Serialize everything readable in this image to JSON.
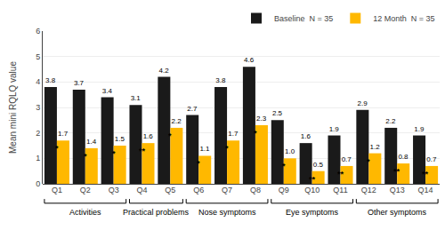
{
  "chart_data": {
    "type": "bar",
    "categories": [
      "Q1",
      "Q2",
      "Q3",
      "Q4",
      "Q5",
      "Q6",
      "Q7",
      "Q8",
      "Q9",
      "Q10",
      "Q11",
      "Q12",
      "Q13",
      "Q14"
    ],
    "series": [
      {
        "name": "Baseline  N = 35",
        "color": "#1a1a1a",
        "values": [
          3.8,
          3.7,
          3.4,
          3.1,
          4.2,
          2.7,
          3.8,
          4.6,
          2.5,
          1.6,
          1.9,
          2.9,
          2.2,
          1.9
        ],
        "value_labels": [
          "3.8",
          "3.7",
          "3.4",
          "3.1",
          "4.2",
          "2.7",
          "3.8",
          "4.6",
          "2.5",
          "1.6",
          "1.9",
          "2.9",
          "2.2",
          "1.9"
        ]
      },
      {
        "name": "12 Month  N = 35",
        "color": "#FFB800",
        "values": [
          1.7,
          1.4,
          1.5,
          1.6,
          2.2,
          1.1,
          1.7,
          2.3,
          1.0,
          0.5,
          0.7,
          1.2,
          0.8,
          0.7
        ],
        "value_labels": [
          "1.7",
          "1.4",
          "1.5",
          "1.6",
          "2.2",
          "1.1",
          "1.7",
          "2.3",
          "1.0",
          "0.5",
          "0.7",
          "1.2",
          "0.8",
          "0.7"
        ]
      }
    ],
    "ylabel": "Mean mini RQLQ value",
    "ylim": [
      0,
      6
    ],
    "yticks": [
      0,
      1,
      2,
      3,
      4,
      5,
      6
    ],
    "grid": true,
    "legend": "upper right",
    "data_labels": true,
    "annotations": [
      {
        "x": 0,
        "y": 1.7,
        "text": "*"
      },
      {
        "x": 1,
        "y": 1.4,
        "text": "*"
      },
      {
        "x": 2,
        "y": 1.5,
        "text": "*"
      },
      {
        "x": 3,
        "y": 1.6,
        "text": "**"
      },
      {
        "x": 4,
        "y": 2.2,
        "text": "*"
      },
      {
        "x": 5,
        "y": 1.1,
        "text": "*"
      },
      {
        "x": 6,
        "y": 1.7,
        "text": "*"
      },
      {
        "x": 7,
        "y": 2.3,
        "text": "*"
      },
      {
        "x": 8,
        "y": 1.0,
        "text": "*"
      },
      {
        "x": 9,
        "y": 0.5,
        "text": "**"
      },
      {
        "x": 10,
        "y": 0.7,
        "text": "**"
      },
      {
        "x": 11,
        "y": 1.2,
        "text": "*"
      },
      {
        "x": 12,
        "y": 0.8,
        "text": "**"
      },
      {
        "x": 13,
        "y": 0.7,
        "text": "**"
      }
    ],
    "groups": [
      {
        "name": "Activities",
        "start": 0,
        "end": 2
      },
      {
        "name": "Practical problems",
        "start": 3,
        "end": 4
      },
      {
        "name": "Nose symptoms",
        "start": 5,
        "end": 7
      },
      {
        "name": "Eye symptoms",
        "start": 8,
        "end": 10
      },
      {
        "name": "Other symptoms",
        "start": 11,
        "end": 13
      }
    ]
  }
}
